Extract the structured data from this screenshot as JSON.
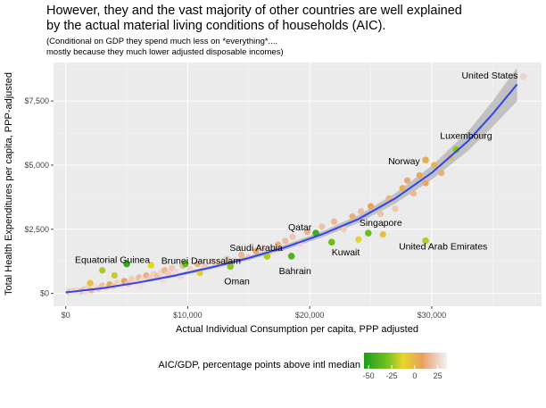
{
  "chart_data": {
    "type": "scatter",
    "title_line1": "However, they and the vast majority of other countries are well explained",
    "title_line2": "by the actual material living conditions of households (AIC).",
    "subtitle_line1": "(Conditional on GDP they spend much less on *everything*....",
    "subtitle_line2": "mostly because they much lower adjusted disposable incomes)",
    "xlabel": "Actual Individual Consumption per capita, PPP adjusted",
    "ylabel": "Total Health Expenditures per capita, PPP-adjusted",
    "xlim": [
      -1000,
      39000
    ],
    "ylim": [
      -500,
      9000
    ],
    "x_ticks": [
      0,
      10000,
      20000,
      30000
    ],
    "x_tick_labels": [
      "$0",
      "$10,000",
      "$20,000",
      "$30,000"
    ],
    "y_ticks": [
      0,
      2500,
      5000,
      7500
    ],
    "y_tick_labels": [
      "$0",
      "$2,500",
      "$5,000",
      "$7,500"
    ],
    "grid": true,
    "legend": {
      "title": "AIC/GDP, percentage points above intl median",
      "range": [
        -55,
        35
      ],
      "ticks": [
        -50,
        -25,
        0,
        25
      ],
      "tick_labels": [
        "-50",
        "-25",
        "0",
        "25"
      ],
      "colors": [
        "#1a9e1a",
        "#7cc41f",
        "#e8d52a",
        "#e8a060",
        "#efcfc4",
        "#f6f0ee"
      ]
    },
    "fit": {
      "x": [
        0,
        3000,
        6000,
        9000,
        12000,
        15000,
        18000,
        21000,
        24000,
        27000,
        30000,
        33000,
        35000,
        37000
      ],
      "y": [
        40,
        200,
        430,
        700,
        1020,
        1380,
        1800,
        2300,
        2900,
        3700,
        4700,
        5950,
        7000,
        8150
      ],
      "band": [
        50,
        40,
        50,
        60,
        70,
        80,
        100,
        120,
        150,
        200,
        270,
        380,
        500,
        650
      ]
    },
    "labeled_points": [
      {
        "name": "United States",
        "x": 37500,
        "y": 8450,
        "c": 18
      },
      {
        "name": "Luxembourg",
        "x": 32000,
        "y": 5600,
        "c": -35
      },
      {
        "name": "Norway",
        "x": 29500,
        "y": 5200,
        "c": -5
      },
      {
        "name": "Singapore",
        "x": 24800,
        "y": 2350,
        "c": -40
      },
      {
        "name": "Qatar",
        "x": 20500,
        "y": 2350,
        "c": -48
      },
      {
        "name": "Kuwait",
        "x": 21800,
        "y": 2000,
        "c": -40
      },
      {
        "name": "United Arab Emirates",
        "x": 29500,
        "y": 2050,
        "c": -28
      },
      {
        "name": "Saudi Arabia",
        "x": 16500,
        "y": 1450,
        "c": -30
      },
      {
        "name": "Bahrain",
        "x": 18500,
        "y": 1450,
        "c": -45
      },
      {
        "name": "Brunei Darussalam",
        "x": 9800,
        "y": 1150,
        "c": -42
      },
      {
        "name": "Oman",
        "x": 13500,
        "y": 1050,
        "c": -35
      },
      {
        "name": "Equatorial Guinea",
        "x": 5000,
        "y": 1150,
        "c": -50
      }
    ],
    "other_points": [
      {
        "x": 300,
        "y": 60,
        "c": 10
      },
      {
        "x": 600,
        "y": 90,
        "c": 15
      },
      {
        "x": 900,
        "y": 120,
        "c": 20
      },
      {
        "x": 1200,
        "y": 80,
        "c": 5
      },
      {
        "x": 1500,
        "y": 150,
        "c": 12
      },
      {
        "x": 1800,
        "y": 200,
        "c": 18
      },
      {
        "x": 2100,
        "y": 120,
        "c": 8
      },
      {
        "x": 2400,
        "y": 260,
        "c": 22
      },
      {
        "x": 2700,
        "y": 180,
        "c": 15
      },
      {
        "x": 3000,
        "y": 300,
        "c": 10
      },
      {
        "x": 3300,
        "y": 230,
        "c": 20
      },
      {
        "x": 3600,
        "y": 350,
        "c": -5
      },
      {
        "x": 3900,
        "y": 280,
        "c": 14
      },
      {
        "x": 4200,
        "y": 420,
        "c": 18
      },
      {
        "x": 4500,
        "y": 330,
        "c": 25
      },
      {
        "x": 4800,
        "y": 480,
        "c": 0
      },
      {
        "x": 5100,
        "y": 380,
        "c": 12
      },
      {
        "x": 5400,
        "y": 560,
        "c": 16
      },
      {
        "x": 5700,
        "y": 450,
        "c": 20
      },
      {
        "x": 6000,
        "y": 620,
        "c": 10
      },
      {
        "x": 6300,
        "y": 520,
        "c": 22
      },
      {
        "x": 6600,
        "y": 700,
        "c": 6
      },
      {
        "x": 6900,
        "y": 600,
        "c": 15
      },
      {
        "x": 7200,
        "y": 760,
        "c": 18
      },
      {
        "x": 7500,
        "y": 680,
        "c": 12
      },
      {
        "x": 7800,
        "y": 820,
        "c": 20
      },
      {
        "x": 8100,
        "y": 900,
        "c": 8
      },
      {
        "x": 8400,
        "y": 760,
        "c": 16
      },
      {
        "x": 8700,
        "y": 980,
        "c": 14
      },
      {
        "x": 9000,
        "y": 840,
        "c": 22
      },
      {
        "x": 9600,
        "y": 1080,
        "c": 10
      },
      {
        "x": 10200,
        "y": 950,
        "c": 18
      },
      {
        "x": 10800,
        "y": 1150,
        "c": 5
      },
      {
        "x": 11400,
        "y": 1050,
        "c": 15
      },
      {
        "x": 12000,
        "y": 1250,
        "c": 20
      },
      {
        "x": 12600,
        "y": 1150,
        "c": 10
      },
      {
        "x": 13200,
        "y": 1350,
        "c": 14
      },
      {
        "x": 13800,
        "y": 1280,
        "c": 18
      },
      {
        "x": 14400,
        "y": 1500,
        "c": 8
      },
      {
        "x": 15000,
        "y": 1400,
        "c": 12
      },
      {
        "x": 15600,
        "y": 1650,
        "c": 0
      },
      {
        "x": 16200,
        "y": 1780,
        "c": 16
      },
      {
        "x": 16800,
        "y": 1600,
        "c": 20
      },
      {
        "x": 17400,
        "y": 1900,
        "c": 5
      },
      {
        "x": 18000,
        "y": 2050,
        "c": 10
      },
      {
        "x": 18600,
        "y": 2200,
        "c": 14
      },
      {
        "x": 19200,
        "y": 1950,
        "c": 18
      },
      {
        "x": 19800,
        "y": 2400,
        "c": 6
      },
      {
        "x": 21000,
        "y": 2600,
        "c": 12
      },
      {
        "x": 22000,
        "y": 2800,
        "c": 8
      },
      {
        "x": 22800,
        "y": 2500,
        "c": 16
      },
      {
        "x": 23500,
        "y": 3000,
        "c": 4
      },
      {
        "x": 24200,
        "y": 3200,
        "c": 10
      },
      {
        "x": 25000,
        "y": 3400,
        "c": -2
      },
      {
        "x": 25800,
        "y": 3100,
        "c": 12
      },
      {
        "x": 26500,
        "y": 3700,
        "c": 6
      },
      {
        "x": 27000,
        "y": 3300,
        "c": 14
      },
      {
        "x": 27600,
        "y": 4100,
        "c": -6
      },
      {
        "x": 28000,
        "y": 4400,
        "c": 2
      },
      {
        "x": 28500,
        "y": 3900,
        "c": 8
      },
      {
        "x": 29000,
        "y": 4600,
        "c": -4
      },
      {
        "x": 29500,
        "y": 4300,
        "c": 0
      },
      {
        "x": 30200,
        "y": 5000,
        "c": -8
      },
      {
        "x": 30800,
        "y": 4700,
        "c": 4
      },
      {
        "x": 31500,
        "y": 5300,
        "c": -10
      },
      {
        "x": 26000,
        "y": 2300,
        "c": -12
      },
      {
        "x": 24000,
        "y": 2100,
        "c": -18
      },
      {
        "x": 3000,
        "y": 900,
        "c": -30
      },
      {
        "x": 4000,
        "y": 700,
        "c": -25
      },
      {
        "x": 7000,
        "y": 1100,
        "c": -20
      },
      {
        "x": 11000,
        "y": 800,
        "c": -15
      },
      {
        "x": 2000,
        "y": 400,
        "c": -12
      },
      {
        "x": 500,
        "y": 30,
        "c": 28
      },
      {
        "x": 1000,
        "y": 50,
        "c": 25
      },
      {
        "x": 1600,
        "y": 70,
        "c": 24
      },
      {
        "x": 6200,
        "y": 300,
        "c": 26
      },
      {
        "x": 8000,
        "y": 500,
        "c": 24
      },
      {
        "x": 9400,
        "y": 650,
        "c": 22
      }
    ]
  }
}
